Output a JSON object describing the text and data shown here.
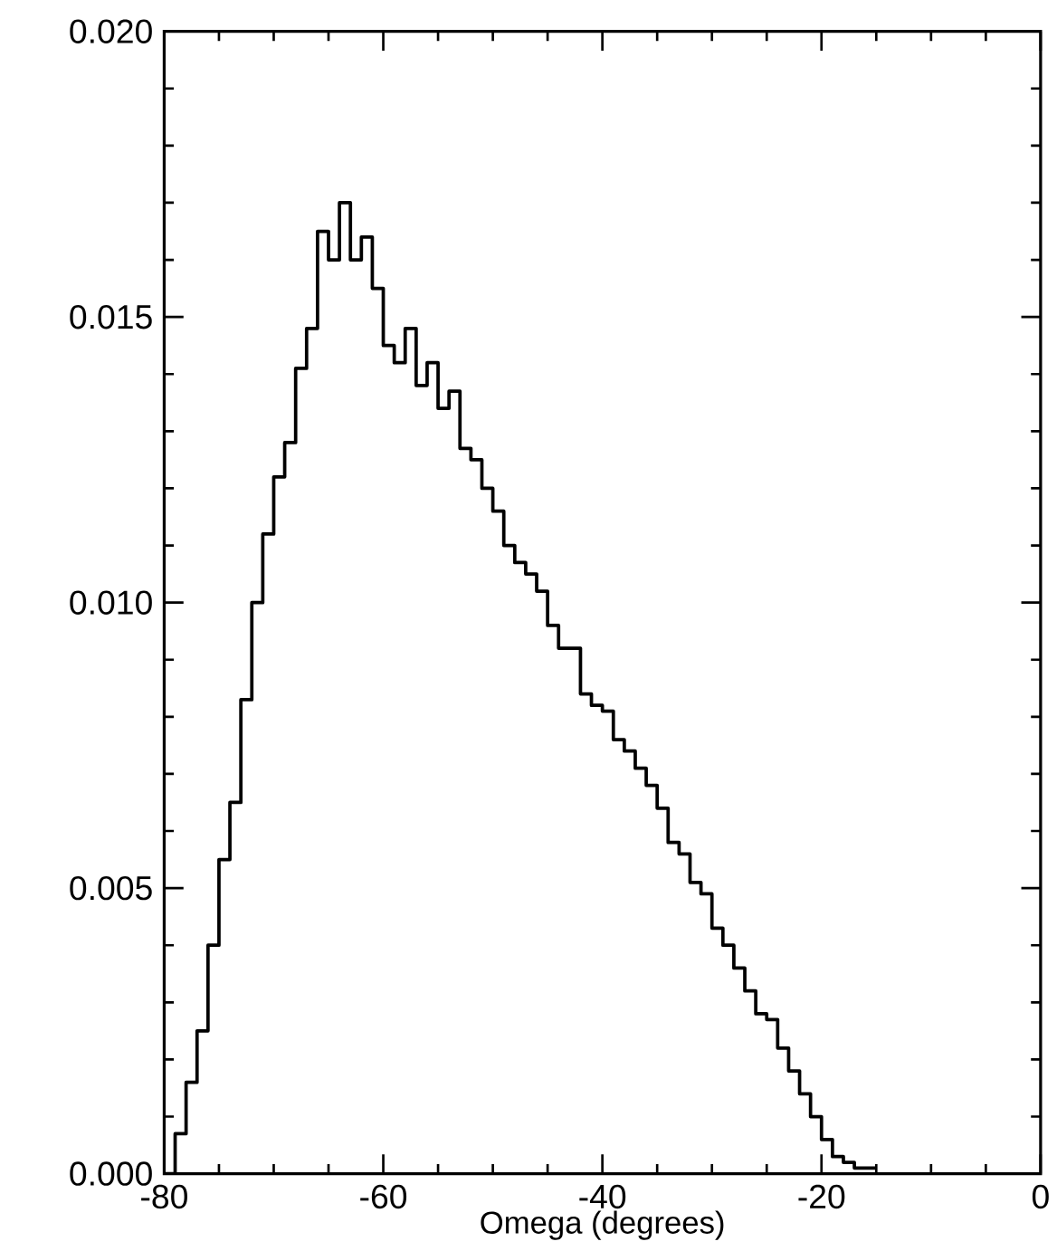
{
  "chart_data": {
    "type": "histogram",
    "xlabel": "Omega (degrees)",
    "bins": [
      -80,
      -79,
      -78,
      -77,
      -76,
      -75,
      -74,
      -73,
      -72,
      -71,
      -70,
      -69,
      -68,
      -67,
      -66,
      -65,
      -64,
      -63,
      -62,
      -61,
      -60,
      -59,
      -58,
      -57,
      -56,
      -55,
      -54,
      -53,
      -52,
      -51,
      -50,
      -49,
      -48,
      -47,
      -46,
      -45,
      -44,
      -43,
      -42,
      -41,
      -40,
      -39,
      -38,
      -37,
      -36,
      -35,
      -34,
      -33,
      -32,
      -31,
      -30,
      -29,
      -28,
      -27,
      -26,
      -25,
      -24,
      -23,
      -22,
      -21,
      -20,
      -19,
      -18,
      -17,
      -16,
      -15
    ],
    "values": [
      0,
      0.0007,
      0.0016,
      0.0025,
      0.004,
      0.0055,
      0.0065,
      0.0083,
      0.01,
      0.0112,
      0.0122,
      0.0128,
      0.0141,
      0.0148,
      0.0165,
      0.016,
      0.017,
      0.016,
      0.0164,
      0.0155,
      0.0145,
      0.0142,
      0.0148,
      0.0138,
      0.0142,
      0.0134,
      0.0137,
      0.0127,
      0.0125,
      0.012,
      0.0116,
      0.011,
      0.0107,
      0.0105,
      0.0102,
      0.0096,
      0.0092,
      0.0092,
      0.0084,
      0.0082,
      0.0081,
      0.0076,
      0.0074,
      0.0071,
      0.0068,
      0.0064,
      0.0058,
      0.0056,
      0.0051,
      0.0049,
      0.0043,
      0.004,
      0.0036,
      0.0032,
      0.0028,
      0.0027,
      0.0022,
      0.0018,
      0.0014,
      0.001,
      0.0006,
      0.0003,
      0.0002,
      0.0001,
      0.0001
    ],
    "color": "#000000",
    "xlim": [
      -80,
      0
    ],
    "xticks": [
      -80,
      -60,
      -40,
      -20,
      0
    ],
    "ylim": [
      0,
      0.02
    ],
    "yticks": [
      {
        "value": 0,
        "label": "0.000"
      },
      {
        "value": 0.005,
        "label": "0.005"
      },
      {
        "value": 0.01,
        "label": "0.010"
      },
      {
        "value": 0.015,
        "label": "0.015"
      },
      {
        "value": 0.02,
        "label": "0.020"
      }
    ]
  }
}
